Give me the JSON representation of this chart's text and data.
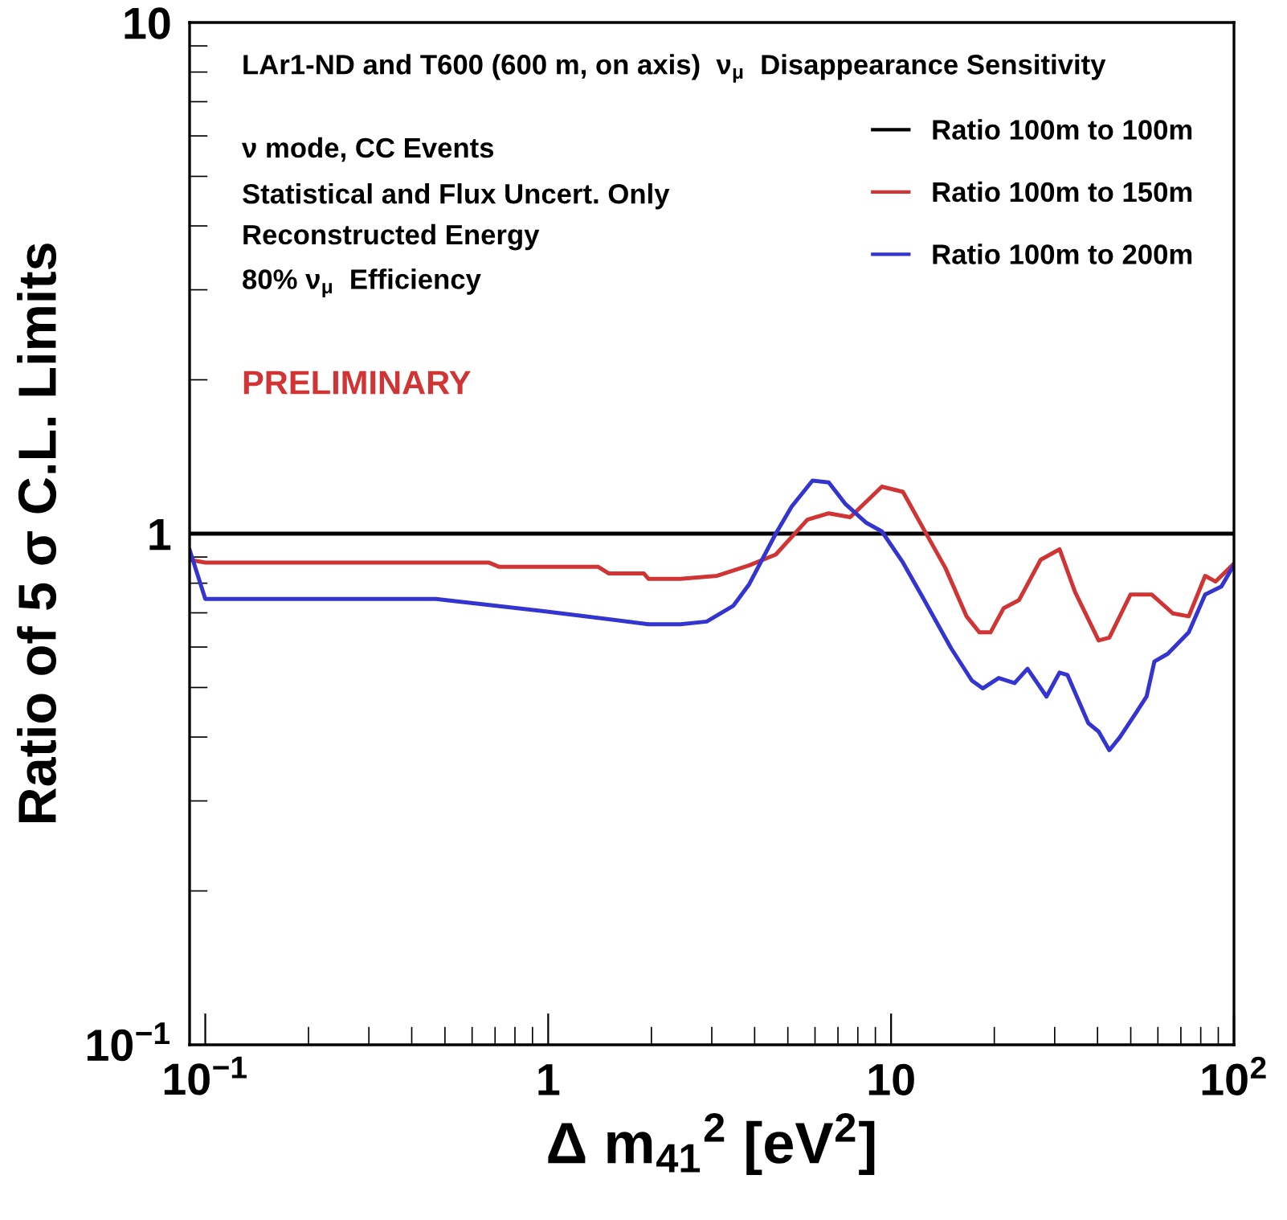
{
  "chart_data": {
    "type": "line",
    "xlabel": "Δ m$_{41}$$^{2}$ [eV$^{2}$]",
    "ylabel": "Ratio of 5 σ C.L. Limits",
    "annotations": [
      "LAr1-ND and T600 (600 m, on axis)  ν$_{μ}$  Disappearance Sensitivity",
      "ν mode, CC Events",
      "Statistical and Flux Uncert. Only",
      "Reconstructed Energy",
      "80% ν$_{μ}$  Efficiency",
      "PRELIMINARY"
    ],
    "log": "xy",
    "xlim": [
      0.09,
      100
    ],
    "ylim": [
      0.1,
      10
    ],
    "xticks": [
      {
        "value": 0.1,
        "label": "10$^{−1}$"
      },
      1,
      10,
      {
        "value": 100,
        "label": "10$^{2}$"
      }
    ],
    "yticks": [
      {
        "value": 0.1,
        "label": "10$^{−1}$"
      },
      1,
      10
    ],
    "grid": false,
    "legend": "top right",
    "line_style": "solid",
    "marker": "none",
    "series": [
      {
        "name": "Ratio 100m to 100m",
        "color": "#000000",
        "x": [
          0.09,
          100
        ],
        "values": [
          1,
          1
        ]
      },
      {
        "name": "Ratio 100m to 150m",
        "color": "#d03434",
        "x": [
          0.09,
          0.1,
          0.3,
          0.67,
          0.72,
          1.4,
          1.5,
          1.9,
          1.96,
          2.43,
          3.11,
          3.86,
          4.61,
          5.7,
          6.58,
          7.6,
          9.4,
          10.83,
          12.5,
          14.4,
          16.6,
          18.1,
          19.5,
          21.3,
          23.6,
          27.3,
          31.0,
          34.4,
          40.3,
          43.3,
          49.9,
          57.6,
          66.4,
          73.8,
          82.4,
          88.4,
          99.8
        ],
        "values": [
          0.889,
          0.878,
          0.878,
          0.878,
          0.861,
          0.861,
          0.836,
          0.836,
          0.816,
          0.816,
          0.827,
          0.867,
          0.91,
          1.065,
          1.096,
          1.077,
          1.236,
          1.207,
          1.015,
          0.857,
          0.689,
          0.641,
          0.641,
          0.715,
          0.741,
          0.889,
          0.932,
          0.769,
          0.618,
          0.626,
          0.76,
          0.76,
          0.698,
          0.689,
          0.827,
          0.806,
          0.873
        ]
      },
      {
        "name": "Ratio 100m to 200m",
        "color": "#3434d0",
        "x": [
          0.09,
          0.1,
          0.3,
          0.47,
          0.96,
          1.96,
          2.43,
          2.9,
          3.47,
          3.86,
          4.61,
          5.13,
          5.9,
          6.58,
          7.34,
          8.47,
          9.4,
          10.83,
          12.5,
          14.96,
          17.2,
          18.5,
          20.6,
          22.9,
          25.0,
          28.4,
          31.0,
          32.7,
          37.6,
          40.3,
          43.3,
          46.5,
          51.9,
          55.6,
          58.6,
          64.1,
          73.8,
          82.4,
          91.9,
          99.8
        ],
        "values": [
          0.93,
          0.745,
          0.745,
          0.745,
          0.706,
          0.665,
          0.665,
          0.673,
          0.723,
          0.797,
          1.0,
          1.13,
          1.27,
          1.26,
          1.145,
          1.05,
          1.01,
          0.878,
          0.741,
          0.597,
          0.516,
          0.498,
          0.522,
          0.51,
          0.544,
          0.48,
          0.535,
          0.529,
          0.426,
          0.41,
          0.377,
          0.4,
          0.447,
          0.48,
          0.562,
          0.582,
          0.641,
          0.76,
          0.788,
          0.867
        ]
      }
    ]
  }
}
